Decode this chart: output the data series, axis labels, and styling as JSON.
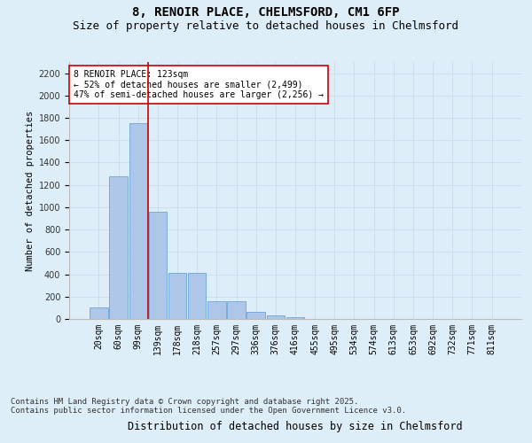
{
  "title1": "8, RENOIR PLACE, CHELMSFORD, CM1 6FP",
  "title2": "Size of property relative to detached houses in Chelmsford",
  "xlabel": "Distribution of detached houses by size in Chelmsford",
  "ylabel": "Number of detached properties",
  "categories": [
    "20sqm",
    "60sqm",
    "99sqm",
    "139sqm",
    "178sqm",
    "218sqm",
    "257sqm",
    "297sqm",
    "336sqm",
    "376sqm",
    "416sqm",
    "455sqm",
    "495sqm",
    "534sqm",
    "574sqm",
    "613sqm",
    "653sqm",
    "692sqm",
    "732sqm",
    "771sqm",
    "811sqm"
  ],
  "values": [
    100,
    1280,
    1750,
    960,
    415,
    415,
    160,
    160,
    65,
    30,
    15,
    0,
    0,
    0,
    0,
    0,
    0,
    0,
    0,
    0,
    0
  ],
  "bar_color": "#aec6e8",
  "bar_edge_color": "#5b9bd5",
  "vline_x": 2.5,
  "vline_color": "#cc0000",
  "annotation_text": "8 RENOIR PLACE: 123sqm\n← 52% of detached houses are smaller (2,499)\n47% of semi-detached houses are larger (2,256) →",
  "annotation_box_color": "#ffffff",
  "annotation_box_edge_color": "#cc0000",
  "ylim": [
    0,
    2300
  ],
  "yticks": [
    0,
    200,
    400,
    600,
    800,
    1000,
    1200,
    1400,
    1600,
    1800,
    2000,
    2200
  ],
  "grid_color": "#c8d8e8",
  "background_color": "#ddeef8",
  "plot_bg_color": "#ddeef8",
  "footer1": "Contains HM Land Registry data © Crown copyright and database right 2025.",
  "footer2": "Contains public sector information licensed under the Open Government Licence v3.0.",
  "title1_fontsize": 10,
  "title2_fontsize": 9,
  "tick_fontsize": 7,
  "xlabel_fontsize": 8.5,
  "ylabel_fontsize": 7.5,
  "footer_fontsize": 6.5,
  "annotation_fontsize": 7
}
